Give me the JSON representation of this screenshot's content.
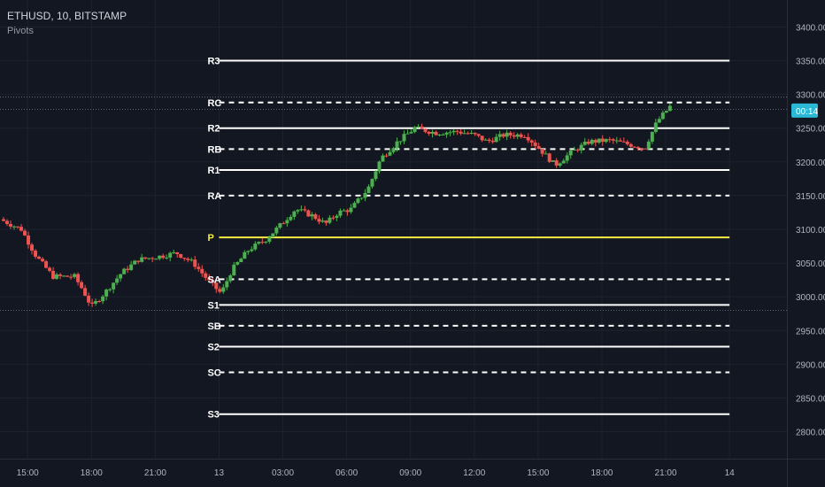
{
  "header": {
    "symbol": "ETHUSD, 10, BITSTAMP",
    "indicator": "Pivots"
  },
  "colors": {
    "background": "#131722",
    "grid": "#1e222d",
    "up": "#26a69a",
    "up_candle": "#4caf50",
    "down": "#ef5350",
    "pivot_line": "#ffffff",
    "pivot_p": "#f5eb42",
    "axis_text": "#b2b5be",
    "price_tag": "#2ab8d6",
    "crosshair": "#787b86"
  },
  "chart_data": {
    "type": "candlestick",
    "title": "ETHUSD, 10, BITSTAMP",
    "ylim": [
      2760,
      3440
    ],
    "y_ticks": [
      2800,
      2850,
      2900,
      2950,
      3000,
      3050,
      3100,
      3150,
      3200,
      3250,
      3300,
      3350,
      3400
    ],
    "y_tick_labels": [
      "2800.00",
      "2850.00",
      "2900.00",
      "2950.00",
      "3000.00",
      "3050.00",
      "3100.00",
      "3150.00",
      "3200.00",
      "3250.00",
      "3300.00",
      "3350.00",
      "3400.00"
    ],
    "x_ticks": [
      {
        "label": "15:00",
        "t": 0
      },
      {
        "label": "18:00",
        "t": 3
      },
      {
        "label": "21:00",
        "t": 6
      },
      {
        "label": "13",
        "t": 9
      },
      {
        "label": "03:00",
        "t": 12
      },
      {
        "label": "06:00",
        "t": 15
      },
      {
        "label": "09:00",
        "t": 18
      },
      {
        "label": "12:00",
        "t": 21
      },
      {
        "label": "15:00",
        "t": 24
      },
      {
        "label": "18:00",
        "t": 27
      },
      {
        "label": "21:00",
        "t": 30
      },
      {
        "label": "14",
        "t": 33
      }
    ],
    "x_range": [
      -1.3,
      35.7
    ],
    "pivot_start_t": 9,
    "pivot_end_t": 33,
    "pivots": [
      {
        "label": "R3",
        "value": 3350,
        "style": "solid"
      },
      {
        "label": "RC",
        "value": 3288,
        "style": "dashed"
      },
      {
        "label": "R2",
        "value": 3250,
        "style": "solid"
      },
      {
        "label": "RB",
        "value": 3219,
        "style": "dashed"
      },
      {
        "label": "R1",
        "value": 3188,
        "style": "solid"
      },
      {
        "label": "RA",
        "value": 3150,
        "style": "dashed"
      },
      {
        "label": "P",
        "value": 3088,
        "style": "solid",
        "highlight": true
      },
      {
        "label": "SA",
        "value": 3026,
        "style": "dashed"
      },
      {
        "label": "S1",
        "value": 2988,
        "style": "solid"
      },
      {
        "label": "SB",
        "value": 2957,
        "style": "dashed"
      },
      {
        "label": "S2",
        "value": 2926,
        "style": "solid"
      },
      {
        "label": "SC",
        "value": 2888,
        "style": "dashed"
      },
      {
        "label": "S3",
        "value": 2826,
        "style": "solid"
      }
    ],
    "price_path": [
      [
        -1.3,
        3115
      ],
      [
        -0.3,
        3100
      ],
      [
        0.4,
        3060
      ],
      [
        1.2,
        3030
      ],
      [
        2.2,
        3030
      ],
      [
        2.6,
        3010
      ],
      [
        3.0,
        2985
      ],
      [
        3.6,
        3005
      ],
      [
        4.4,
        3035
      ],
      [
        5.2,
        3055
      ],
      [
        6.2,
        3060
      ],
      [
        7.0,
        3065
      ],
      [
        7.8,
        3050
      ],
      [
        8.6,
        3020
      ],
      [
        9.1,
        3005
      ],
      [
        9.6,
        3040
      ],
      [
        10.4,
        3070
      ],
      [
        11.2,
        3085
      ],
      [
        12.0,
        3110
      ],
      [
        12.6,
        3130
      ],
      [
        13.4,
        3120
      ],
      [
        14.0,
        3108
      ],
      [
        14.6,
        3125
      ],
      [
        15.2,
        3130
      ],
      [
        16.0,
        3160
      ],
      [
        16.6,
        3205
      ],
      [
        17.4,
        3230
      ],
      [
        18.2,
        3250
      ],
      [
        19.2,
        3243
      ],
      [
        20.2,
        3245
      ],
      [
        21.0,
        3240
      ],
      [
        21.6,
        3230
      ],
      [
        22.4,
        3240
      ],
      [
        23.4,
        3240
      ],
      [
        24.2,
        3215
      ],
      [
        24.8,
        3195
      ],
      [
        25.6,
        3215
      ],
      [
        26.4,
        3230
      ],
      [
        27.4,
        3232
      ],
      [
        28.4,
        3225
      ],
      [
        29.0,
        3220
      ],
      [
        29.6,
        3260
      ],
      [
        30.2,
        3282
      ]
    ],
    "last_price_label": "00:14",
    "last_price": 3276,
    "crosshair_prices": [
      3296,
      3278,
      2980
    ]
  }
}
